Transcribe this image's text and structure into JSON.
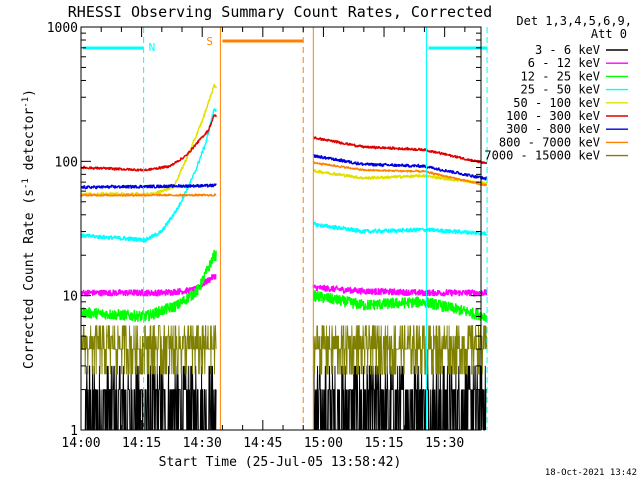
{
  "chart_data": {
    "type": "line",
    "title": "RHESSI Observing Summary Count Rates, Corrected",
    "xlabel": "Start Time (25-Jul-05 13:58:42)",
    "ylabel": "Corrected Count Rate (s⁻¹ detector⁻¹)",
    "ylabel_parts": [
      "Corrected Count Rate (s",
      "-1",
      " detector",
      "-1",
      ")"
    ],
    "yscale": "log",
    "ylim": [
      1,
      1000
    ],
    "xlim_minutes": [
      0,
      99
    ],
    "x_ticks": [
      "14:00",
      "14:15",
      "14:30",
      "14:45",
      "15:00",
      "15:15",
      "15:30"
    ],
    "y_ticks": [
      "1",
      "10",
      "100",
      "1000"
    ],
    "legend_header": [
      "Det 1,3,4,5,6,9,",
      "Att 0"
    ],
    "legend_position": "right",
    "footer": "18-Oct-2021 13:42",
    "markers": [
      {
        "label": "N",
        "color": "#00ffff",
        "bar_start_min": 0,
        "bar_end_min": 15.5,
        "dashed_line_min": 15.5,
        "solid_lines_min": [
          0
        ]
      },
      {
        "label": "S",
        "color": "#ff8000",
        "bar_start_min": 34.5,
        "bar_end_min": 55,
        "dashed_line_min": 55,
        "solid_lines_min": [
          34.5
        ]
      },
      {
        "label": "",
        "color": "#00ffff",
        "bar_start_min": 85.5,
        "bar_end_min": 100.5,
        "dashed_line_min": 100.5,
        "solid_lines_min": [
          85.5
        ]
      },
      {
        "label": "",
        "color": "#ff8000",
        "bar_start_min": null,
        "bar_end_min": null,
        "dashed_line_min": null,
        "solid_lines_min": [
          57.5
        ]
      }
    ],
    "gap_minutes": [
      33.5,
      57.5
    ],
    "series": [
      {
        "name": "3 - 6 keV",
        "color": "#000000",
        "noise": "counts",
        "points": [
          [
            0,
            1.8
          ],
          [
            33,
            2.0
          ],
          [
            57.5,
            1.8
          ],
          [
            100.5,
            2.0
          ]
        ]
      },
      {
        "name": "6 - 12 keV",
        "color": "#ff00ff",
        "noise": 0.06,
        "points": [
          [
            0,
            10.5
          ],
          [
            20,
            10.5
          ],
          [
            28,
            11
          ],
          [
            33,
            14
          ],
          [
            57.5,
            11.5
          ],
          [
            70,
            10.8
          ],
          [
            85,
            10.5
          ],
          [
            100.5,
            10.5
          ]
        ]
      },
      {
        "name": "12 - 25 keV",
        "color": "#00ff00",
        "noise": 0.1,
        "points": [
          [
            0,
            7.5
          ],
          [
            16,
            7
          ],
          [
            24,
            8.5
          ],
          [
            29,
            11
          ],
          [
            33,
            20
          ],
          [
            57.5,
            10
          ],
          [
            70,
            8.5
          ],
          [
            85,
            9
          ],
          [
            100.5,
            7
          ]
        ]
      },
      {
        "name": "25 - 50 keV",
        "color": "#00ffff",
        "noise": 0.04,
        "points": [
          [
            0,
            28
          ],
          [
            16,
            26
          ],
          [
            20,
            30
          ],
          [
            24,
            45
          ],
          [
            28,
            80
          ],
          [
            31,
            140
          ],
          [
            33,
            250
          ],
          [
            57.5,
            34
          ],
          [
            70,
            30
          ],
          [
            85,
            31
          ],
          [
            100.5,
            29
          ]
        ]
      },
      {
        "name": "50 - 100 keV",
        "color": "#e0e000",
        "noise": 0.03,
        "points": [
          [
            0,
            57
          ],
          [
            18,
            57
          ],
          [
            23,
            65
          ],
          [
            27,
            120
          ],
          [
            30,
            200
          ],
          [
            33,
            370
          ],
          [
            57.5,
            85
          ],
          [
            70,
            75
          ],
          [
            85,
            78
          ],
          [
            100.5,
            68
          ]
        ]
      },
      {
        "name": "100 - 300 keV",
        "color": "#e00000",
        "noise": 0.025,
        "points": [
          [
            0,
            90
          ],
          [
            16,
            86
          ],
          [
            22,
            92
          ],
          [
            26,
            110
          ],
          [
            29,
            140
          ],
          [
            31.5,
            170
          ],
          [
            33,
            220
          ],
          [
            57.5,
            150
          ],
          [
            70,
            128
          ],
          [
            85,
            122
          ],
          [
            100.5,
            96
          ]
        ]
      },
      {
        "name": "300 - 800 keV",
        "color": "#0000e0",
        "noise": 0.03,
        "points": [
          [
            0,
            64
          ],
          [
            33,
            66
          ],
          [
            57.5,
            110
          ],
          [
            70,
            95
          ],
          [
            85,
            92
          ],
          [
            100.5,
            74
          ]
        ]
      },
      {
        "name": "800 - 7000 keV",
        "color": "#ff8000",
        "noise": 0.02,
        "points": [
          [
            0,
            56
          ],
          [
            33,
            56
          ],
          [
            57.5,
            98
          ],
          [
            70,
            86
          ],
          [
            85,
            84
          ],
          [
            100.5,
            66
          ]
        ]
      },
      {
        "name": "7000 - 15000 keV",
        "color": "#808000",
        "noise": "counts",
        "points": [
          [
            0,
            4
          ],
          [
            33,
            4.5
          ],
          [
            57.5,
            4.5
          ],
          [
            100.5,
            4
          ]
        ]
      }
    ]
  }
}
